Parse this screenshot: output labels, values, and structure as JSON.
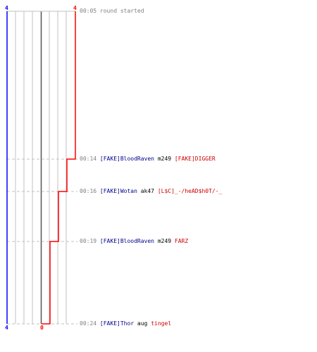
{
  "scores": {
    "left_top": "4",
    "right_top": "4",
    "left_bottom": "4",
    "right_bottom": "0"
  },
  "events": [
    {
      "time": "00:05",
      "message": "round started"
    },
    {
      "time": "00:14",
      "killer": "[FAKE]BloodRaven",
      "weapon": "m249",
      "victim": "[FAKE]DIGGER"
    },
    {
      "time": "00:16",
      "killer": "[FAKE]Wotan",
      "weapon": "ak47",
      "victim": "[L$C]_-/heAD$h0T/-_"
    },
    {
      "time": "00:19",
      "killer": "[FAKE]BloodRaven",
      "weapon": "m249",
      "victim": "FARZ"
    },
    {
      "time": "00:24",
      "killer": "[FAKE]Thor",
      "weapon": "aug",
      "victim": "tingel"
    }
  ],
  "colors": {
    "team_blue": "#0000ff",
    "team_red": "#ff0000",
    "grid": "#c0c0c0",
    "dashed": "#c0c0c0",
    "timestamp": "#808080",
    "killer": "#00008b",
    "victim": "#cc0000"
  }
}
